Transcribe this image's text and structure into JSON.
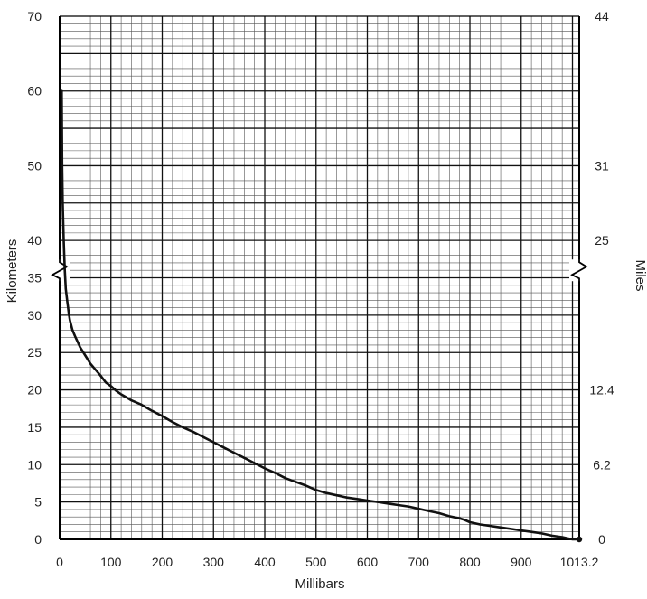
{
  "chart_data": {
    "type": "line",
    "title": "",
    "xlabel": "Millibars",
    "ylabel": "Kilometers",
    "y2label": "Miles",
    "xlim": [
      0,
      1013.2
    ],
    "ylim": [
      0,
      70
    ],
    "grid": true,
    "x_ticks": [
      "0",
      "100",
      "200",
      "300",
      "400",
      "500",
      "600",
      "700",
      "800",
      "900",
      "1013.2"
    ],
    "y_ticks": [
      "0",
      "5",
      "10",
      "15",
      "20",
      "25",
      "30",
      "35",
      "40",
      "50",
      "60",
      "70"
    ],
    "y2_ticks": [
      {
        "label": "0",
        "km": 0
      },
      {
        "label": "6.2",
        "km": 10
      },
      {
        "label": "12.4",
        "km": 20
      },
      {
        "label": "25",
        "km": 40
      },
      {
        "label": "31",
        "km": 50
      },
      {
        "label": "44",
        "km": 70
      }
    ],
    "axis_break_at_km": 36,
    "series": [
      {
        "x": [
          1013.2,
          1000,
          980,
          960,
          940,
          920,
          900,
          880,
          860,
          840,
          820,
          800,
          790,
          780,
          760,
          740,
          720,
          700,
          680,
          660,
          640,
          620,
          600,
          580,
          560,
          540,
          520,
          500,
          480,
          460,
          440,
          420,
          400,
          380,
          360,
          340,
          320,
          300,
          280,
          260,
          240,
          220,
          200,
          180,
          160,
          150,
          140,
          130,
          120,
          110,
          100,
          90,
          80,
          70,
          60,
          50,
          40,
          30,
          25,
          20,
          18,
          15,
          12,
          10,
          8,
          6,
          5,
          4
        ],
        "y": [
          0,
          0,
          0.3,
          0.5,
          0.8,
          1.0,
          1.2,
          1.4,
          1.6,
          1.8,
          2.0,
          2.3,
          2.6,
          2.8,
          3.1,
          3.5,
          3.8,
          4.1,
          4.4,
          4.6,
          4.8,
          5.0,
          5.2,
          5.4,
          5.6,
          5.9,
          6.2,
          6.6,
          7.2,
          7.7,
          8.2,
          8.9,
          9.5,
          10.2,
          10.9,
          11.6,
          12.3,
          13.0,
          13.7,
          14.4,
          15.0,
          15.7,
          16.5,
          17.2,
          18.0,
          18.3,
          18.6,
          19.0,
          19.4,
          19.9,
          20.5,
          21.0,
          21.9,
          22.7,
          23.5,
          24.6,
          25.7,
          27.2,
          28.0,
          29.3,
          30.2,
          31.8,
          33.5,
          36.0,
          40.0,
          45.0,
          50.0,
          60.0
        ]
      }
    ]
  }
}
